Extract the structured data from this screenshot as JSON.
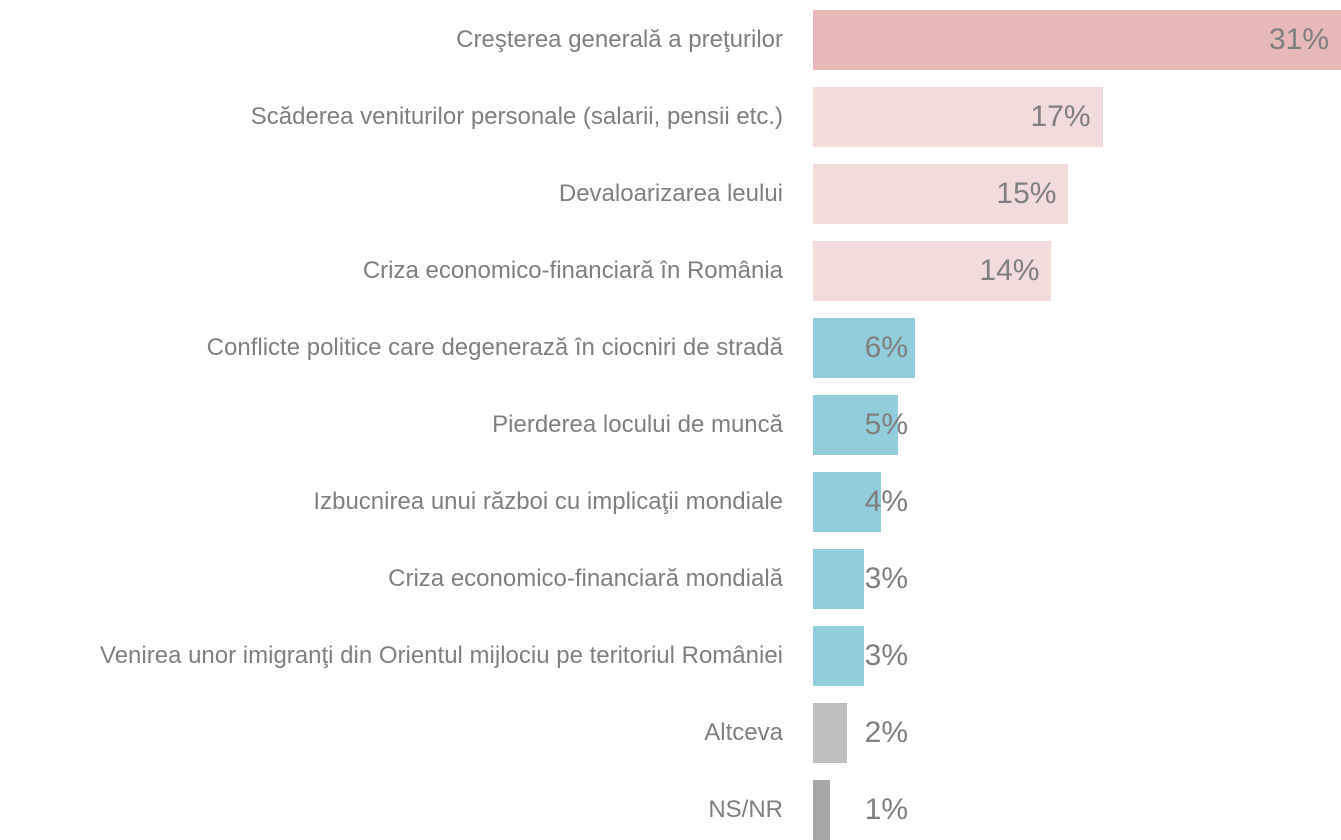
{
  "chart_data": {
    "type": "barh",
    "categories": [
      "Creşterea generală a preţurilor",
      "Scăderea veniturilor personale (salarii, pensii etc.)",
      "Devaloarizarea leului",
      "Criza economico-financiară în România",
      "Conflicte politice care degenerază în ciocniri de stradă",
      "Pierderea locului de muncă",
      "Izbucnirea unui război cu implicaţii mondiale",
      "Criza economico-financiară mondială",
      "Venirea unor imigranţi din Orientul mijlociu pe teritoriul României",
      "Altceva",
      "NS/NR"
    ],
    "values": [
      31,
      17,
      15,
      14,
      6,
      5,
      4,
      3,
      3,
      2,
      1
    ],
    "value_labels": [
      "31%",
      "17%",
      "15%",
      "14%",
      "6%",
      "5%",
      "4%",
      "3%",
      "3%",
      "2%",
      "1%"
    ],
    "colors": [
      "#e6b8b7",
      "#f2dcdb",
      "#f2dcdb",
      "#f2dcdb",
      "#92cddc",
      "#92cddc",
      "#92cddc",
      "#92cddc",
      "#92cddc",
      "#bfbfbf",
      "#a6a6a6"
    ]
  }
}
